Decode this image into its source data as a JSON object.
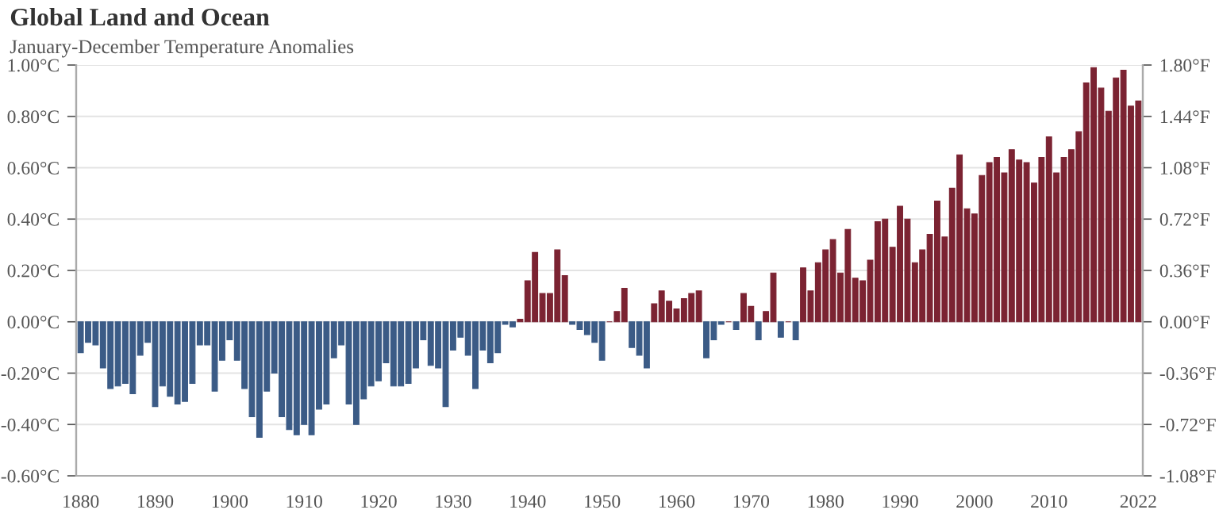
{
  "chart_data": {
    "type": "bar",
    "title": "Global Land and Ocean",
    "subtitle": "January-December Temperature Anomalies",
    "x": [
      1880,
      1881,
      1882,
      1883,
      1884,
      1885,
      1886,
      1887,
      1888,
      1889,
      1890,
      1891,
      1892,
      1893,
      1894,
      1895,
      1896,
      1897,
      1898,
      1899,
      1900,
      1901,
      1902,
      1903,
      1904,
      1905,
      1906,
      1907,
      1908,
      1909,
      1910,
      1911,
      1912,
      1913,
      1914,
      1915,
      1916,
      1917,
      1918,
      1919,
      1920,
      1921,
      1922,
      1923,
      1924,
      1925,
      1926,
      1927,
      1928,
      1929,
      1930,
      1931,
      1932,
      1933,
      1934,
      1935,
      1936,
      1937,
      1938,
      1939,
      1940,
      1941,
      1942,
      1943,
      1944,
      1945,
      1946,
      1947,
      1948,
      1949,
      1950,
      1951,
      1952,
      1953,
      1954,
      1955,
      1956,
      1957,
      1958,
      1959,
      1960,
      1961,
      1962,
      1963,
      1964,
      1965,
      1966,
      1967,
      1968,
      1969,
      1970,
      1971,
      1972,
      1973,
      1974,
      1975,
      1976,
      1977,
      1978,
      1979,
      1980,
      1981,
      1982,
      1983,
      1984,
      1985,
      1986,
      1987,
      1988,
      1989,
      1990,
      1991,
      1992,
      1993,
      1994,
      1995,
      1996,
      1997,
      1998,
      1999,
      2000,
      2001,
      2002,
      2003,
      2004,
      2005,
      2006,
      2007,
      2008,
      2009,
      2010,
      2011,
      2012,
      2013,
      2014,
      2015,
      2016,
      2017,
      2018,
      2019,
      2020,
      2021,
      2022
    ],
    "values": [
      -0.12,
      -0.08,
      -0.09,
      -0.18,
      -0.26,
      -0.25,
      -0.24,
      -0.28,
      -0.13,
      -0.08,
      -0.33,
      -0.25,
      -0.29,
      -0.32,
      -0.31,
      -0.24,
      -0.09,
      -0.09,
      -0.27,
      -0.15,
      -0.07,
      -0.15,
      -0.26,
      -0.37,
      -0.45,
      -0.27,
      -0.2,
      -0.37,
      -0.42,
      -0.44,
      -0.4,
      -0.44,
      -0.34,
      -0.32,
      -0.14,
      -0.09,
      -0.32,
      -0.4,
      -0.3,
      -0.25,
      -0.23,
      -0.16,
      -0.25,
      -0.25,
      -0.24,
      -0.18,
      -0.07,
      -0.17,
      -0.18,
      -0.33,
      -0.11,
      -0.06,
      -0.13,
      -0.26,
      -0.11,
      -0.16,
      -0.12,
      -0.01,
      -0.02,
      0.01,
      0.16,
      0.27,
      0.11,
      0.11,
      0.28,
      0.18,
      -0.01,
      -0.03,
      -0.05,
      -0.08,
      -0.15,
      0.0,
      0.04,
      0.13,
      -0.1,
      -0.13,
      -0.18,
      0.07,
      0.12,
      0.08,
      0.05,
      0.09,
      0.11,
      0.12,
      -0.14,
      -0.07,
      -0.01,
      0.0,
      -0.03,
      0.11,
      0.06,
      -0.07,
      0.04,
      0.19,
      -0.06,
      0.0,
      -0.07,
      0.21,
      0.12,
      0.23,
      0.28,
      0.32,
      0.19,
      0.36,
      0.17,
      0.16,
      0.24,
      0.39,
      0.4,
      0.29,
      0.45,
      0.4,
      0.23,
      0.28,
      0.34,
      0.47,
      0.33,
      0.52,
      0.65,
      0.44,
      0.42,
      0.57,
      0.62,
      0.64,
      0.58,
      0.67,
      0.63,
      0.62,
      0.54,
      0.64,
      0.72,
      0.58,
      0.64,
      0.67,
      0.74,
      0.93,
      0.99,
      0.91,
      0.82,
      0.95,
      0.98,
      0.84,
      0.86
    ],
    "colors": [
      "#3b5b86",
      "#3b5b86",
      "#3b5b86",
      "#3b5b86",
      "#3b5b86",
      "#3b5b86",
      "#3b5b86",
      "#3b5b86",
      "#3b5b86",
      "#3b5b86",
      "#3b5b86",
      "#3b5b86",
      "#3b5b86",
      "#3b5b86",
      "#3b5b86",
      "#3b5b86",
      "#3b5b86",
      "#3b5b86",
      "#3b5b86",
      "#3b5b86",
      "#3b5b86",
      "#3b5b86",
      "#3b5b86",
      "#3b5b86",
      "#3b5b86",
      "#3b5b86",
      "#3b5b86",
      "#3b5b86",
      "#3b5b86",
      "#3b5b86",
      "#3b5b86",
      "#3b5b86",
      "#3b5b86",
      "#3b5b86",
      "#3b5b86",
      "#3b5b86",
      "#3b5b86",
      "#3b5b86",
      "#3b5b86",
      "#3b5b86",
      "#3b5b86",
      "#3b5b86",
      "#3b5b86",
      "#3b5b86",
      "#3b5b86",
      "#3b5b86",
      "#3b5b86",
      "#3b5b86",
      "#3b5b86",
      "#3b5b86",
      "#3b5b86",
      "#3b5b86",
      "#3b5b86",
      "#3b5b86",
      "#3b5b86",
      "#3b5b86",
      "#3b5b86",
      "#3b5b86",
      "#3b5b86",
      "#7b2332",
      "#7b2332",
      "#7b2332",
      "#7b2332",
      "#7b2332",
      "#7b2332",
      "#7b2332",
      "#3b5b86",
      "#3b5b86",
      "#3b5b86",
      "#3b5b86",
      "#3b5b86",
      "#7b2332",
      "#7b2332",
      "#7b2332",
      "#3b5b86",
      "#3b5b86",
      "#3b5b86",
      "#7b2332",
      "#7b2332",
      "#7b2332",
      "#7b2332",
      "#7b2332",
      "#7b2332",
      "#7b2332",
      "#3b5b86",
      "#3b5b86",
      "#3b5b86",
      "#7b2332",
      "#3b5b86",
      "#7b2332",
      "#7b2332",
      "#3b5b86",
      "#7b2332",
      "#7b2332",
      "#3b5b86",
      "#7b2332",
      "#3b5b86",
      "#7b2332",
      "#7b2332",
      "#7b2332",
      "#7b2332",
      "#7b2332",
      "#7b2332",
      "#7b2332",
      "#7b2332",
      "#7b2332",
      "#7b2332",
      "#7b2332",
      "#7b2332",
      "#7b2332",
      "#7b2332",
      "#7b2332",
      "#7b2332",
      "#7b2332",
      "#7b2332",
      "#7b2332",
      "#7b2332",
      "#7b2332",
      "#7b2332",
      "#7b2332",
      "#7b2332",
      "#7b2332",
      "#7b2332",
      "#7b2332",
      "#7b2332",
      "#7b2332",
      "#7b2332",
      "#7b2332",
      "#7b2332",
      "#7b2332",
      "#7b2332",
      "#7b2332",
      "#7b2332",
      "#7b2332",
      "#7b2332",
      "#7b2332",
      "#7b2332",
      "#7b2332",
      "#7b2332",
      "#7b2332",
      "#7b2332",
      "#7b2332",
      "#7b2332"
    ],
    "xlim": [
      1879.4,
      2022.6
    ],
    "xticks": [
      1880,
      1890,
      1900,
      1910,
      1920,
      1930,
      1940,
      1950,
      1960,
      1970,
      1980,
      1990,
      2000,
      2010,
      2022
    ],
    "ylim": [
      -0.6,
      1.0
    ],
    "yticks": [
      {
        "value": -0.6,
        "label": "-0.60°C"
      },
      {
        "value": -0.4,
        "label": "-0.40°C"
      },
      {
        "value": -0.2,
        "label": "-0.20°C"
      },
      {
        "value": 0.0,
        "label": "0.00°C"
      },
      {
        "value": 0.2,
        "label": "0.20°C"
      },
      {
        "value": 0.4,
        "label": "0.40°C"
      },
      {
        "value": 0.6,
        "label": "0.60°C"
      },
      {
        "value": 0.8,
        "label": "0.80°C"
      },
      {
        "value": 1.0,
        "label": "1.00°C"
      }
    ],
    "y2lim": [
      -1.08,
      1.8
    ],
    "y2ticks": [
      {
        "value": -1.08,
        "label": "-1.08°F"
      },
      {
        "value": -0.72,
        "label": "-0.72°F"
      },
      {
        "value": -0.36,
        "label": "-0.36°F"
      },
      {
        "value": 0.0,
        "label": "0.00°F"
      },
      {
        "value": 0.36,
        "label": "0.36°F"
      },
      {
        "value": 0.72,
        "label": "0.72°F"
      },
      {
        "value": 1.08,
        "label": "1.08°F"
      },
      {
        "value": 1.44,
        "label": "1.44°F"
      },
      {
        "value": 1.8,
        "label": "1.80°F"
      }
    ],
    "grid": "y"
  }
}
